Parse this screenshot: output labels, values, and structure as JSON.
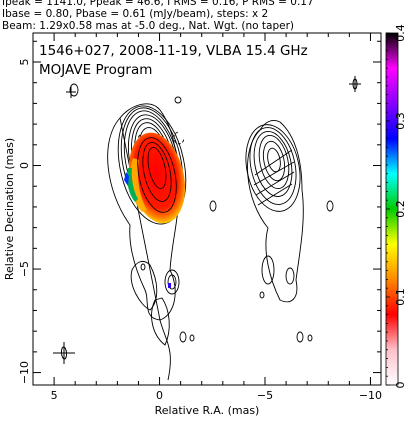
{
  "header": {
    "line1": "Ipeak = 1141.0, Ppeak = 46.6, I RMS = 0.16, P RMS = 0.17",
    "line2": "Ibase = 0.80, Pbase = 0.61 (mJy/beam), steps: x 2",
    "line3": "Beam: 1.29x0.58 mas at -5.0 deg., Nat. Wgt. (no taper)"
  },
  "panel": {
    "title_line1": "1546+027, 2008-11-19, VLBA 15.4 GHz",
    "title_line2": "MOJAVE Program"
  },
  "chart_data": {
    "type": "heatmap",
    "xlabel": "Relative R.A. (mas)",
    "ylabel": "Relative Decination (mas)",
    "xlim": [
      6,
      -10.5
    ],
    "ylim": [
      -10.6,
      6.4
    ],
    "x_ticks": [
      5,
      0,
      -5,
      -10
    ],
    "y_ticks": [
      5,
      0,
      -5,
      -10
    ],
    "colorbar": {
      "range": [
        0,
        0.4
      ],
      "ticks": [
        0,
        0.1,
        0.2,
        0.3,
        0.4
      ],
      "colors": [
        "#ffffff",
        "#ffc0cb",
        "#ff0000",
        "#ff8800",
        "#ffff00",
        "#00cc00",
        "#00ffff",
        "#0000ff",
        "#8800ff",
        "#ff00ff",
        "#000000"
      ]
    },
    "components": [
      {
        "label": "",
        "x": 0.0,
        "y": 0.0
      }
    ],
    "beam": {
      "major": 1.29,
      "minor": 0.58,
      "pa": -5.0
    }
  }
}
